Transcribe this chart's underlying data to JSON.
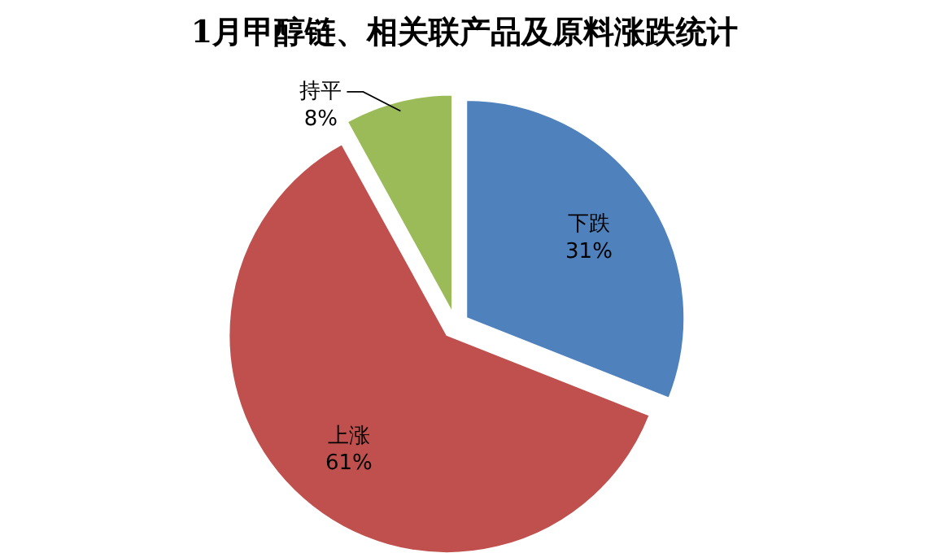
{
  "chart_data": {
    "type": "pie",
    "title": "1月甲醇链、相关联产品及原料涨跌统计",
    "categories": [
      "下跌",
      "上涨",
      "持平"
    ],
    "values": [
      31,
      61,
      8
    ],
    "value_labels": [
      "31%",
      "61%",
      "8%"
    ],
    "colors": [
      "#4f81bd",
      "#c0504d",
      "#9bbb59"
    ]
  }
}
